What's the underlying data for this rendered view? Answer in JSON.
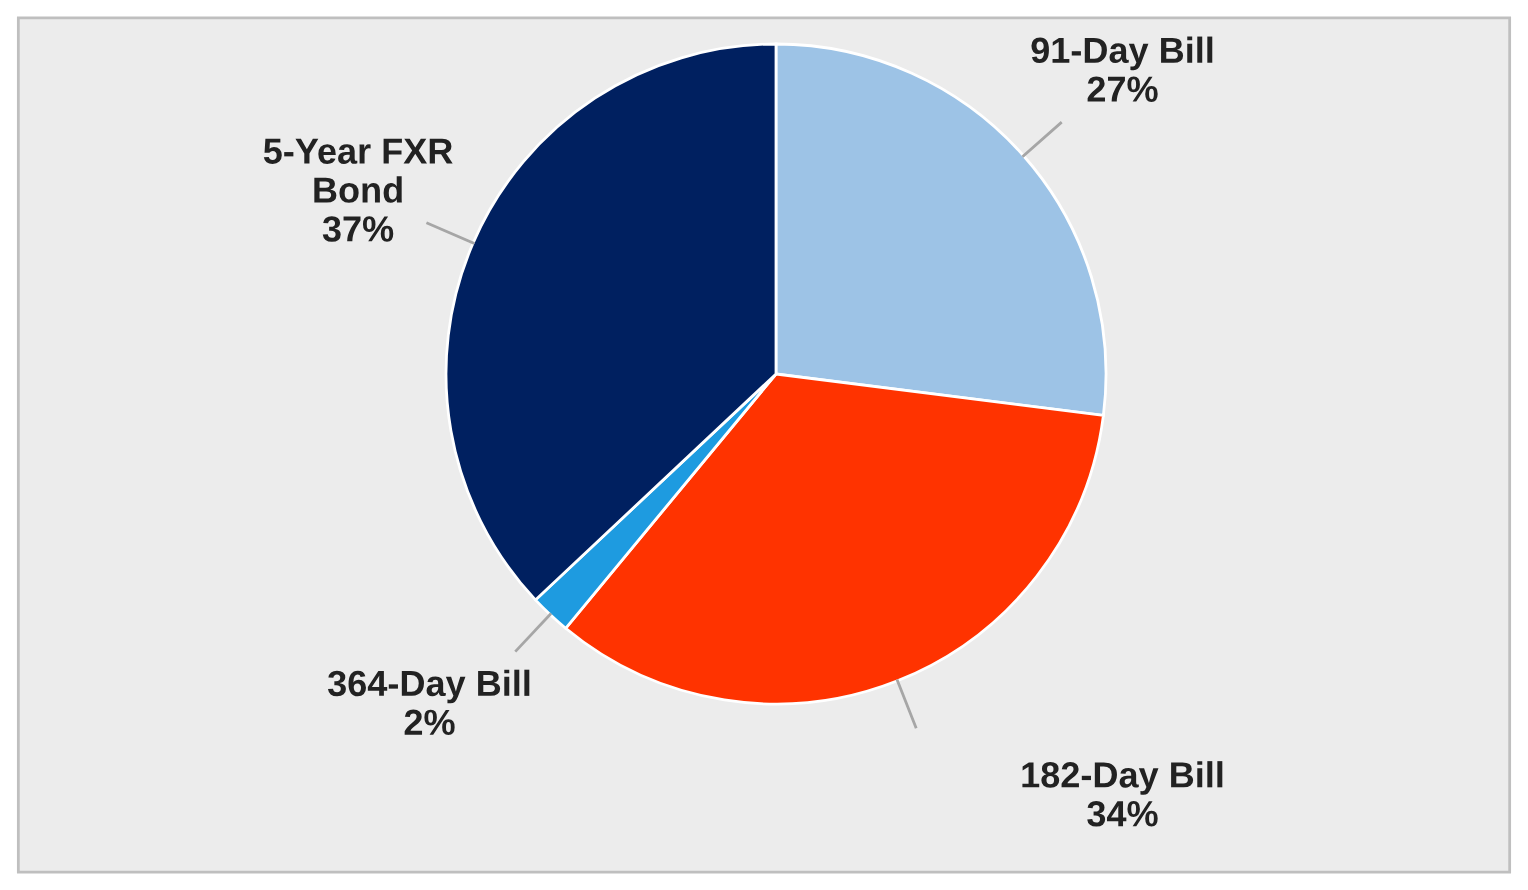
{
  "chart_data": {
    "type": "pie",
    "categories": [
      "91-Day Bill",
      "182-Day Bill",
      "364-Day Bill",
      "5-Year FXR Bond"
    ],
    "values": [
      27,
      34,
      2,
      37
    ],
    "colors": [
      "#9dc3e6",
      "#ff3300",
      "#1e9be0",
      "#002060"
    ],
    "value_labels": [
      "27%",
      "34%",
      "2%",
      "37%"
    ],
    "legend": false
  }
}
